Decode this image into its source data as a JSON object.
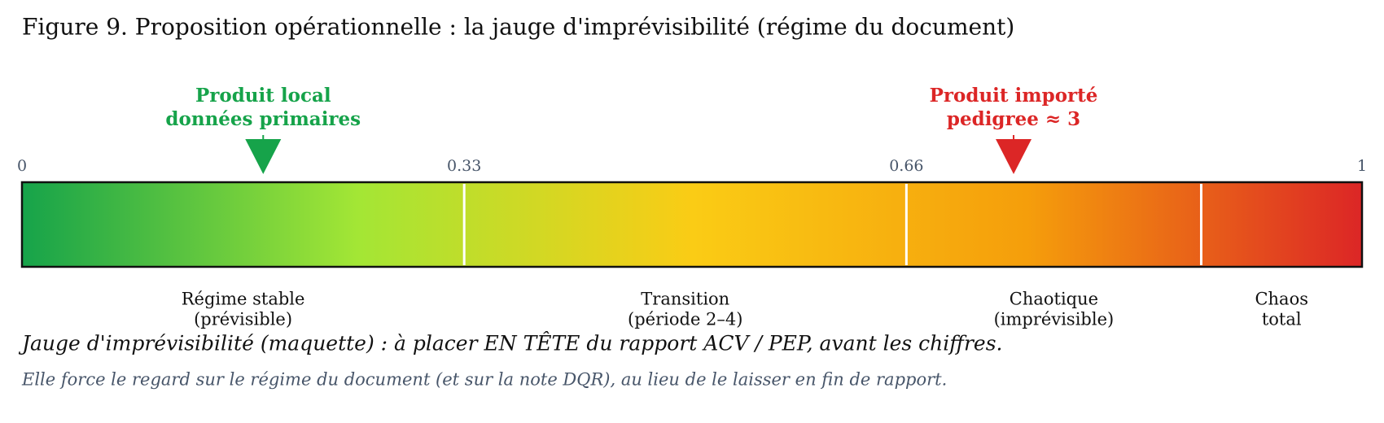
{
  "chart_data": {
    "type": "gauge",
    "title": "Figure 9. Proposition opérationnelle : la jauge d'imprévisibilité (régime du document)",
    "xlim": [
      0,
      1
    ],
    "xticks": [
      0,
      0.33,
      0.66,
      1
    ],
    "gradient": [
      "#16a34a",
      "#a3e635",
      "#facc15",
      "#f59e0b",
      "#dc2626"
    ],
    "regions": [
      {
        "lines": [
          "Régime stable",
          "(prévisible)"
        ],
        "from": 0,
        "to": 0.33
      },
      {
        "lines": [
          "Transition",
          "(période 2–4)"
        ],
        "from": 0.33,
        "to": 0.66
      },
      {
        "lines": [
          "Chaotique",
          "(imprévisible)"
        ],
        "from": 0.66,
        "to": 0.88
      },
      {
        "lines": [
          "Chaos",
          "total"
        ],
        "from": 0.88,
        "to": 1
      }
    ],
    "markers": [
      {
        "lines": [
          "Produit local",
          "données primaires"
        ],
        "value": 0.18,
        "color": "#16a34a"
      },
      {
        "lines": [
          "Produit importé",
          "pedigree ≈ 3"
        ],
        "value": 0.74,
        "color": "#dc2626"
      }
    ],
    "caption": "Jauge d'imprévisibilité (maquette) : à placer EN TÊTE du rapport ACV / PEP, avant les chiffres.",
    "note": "Elle force le regard sur le régime du document (et sur la note DQR), au lieu de le laisser en fin de rapport."
  }
}
